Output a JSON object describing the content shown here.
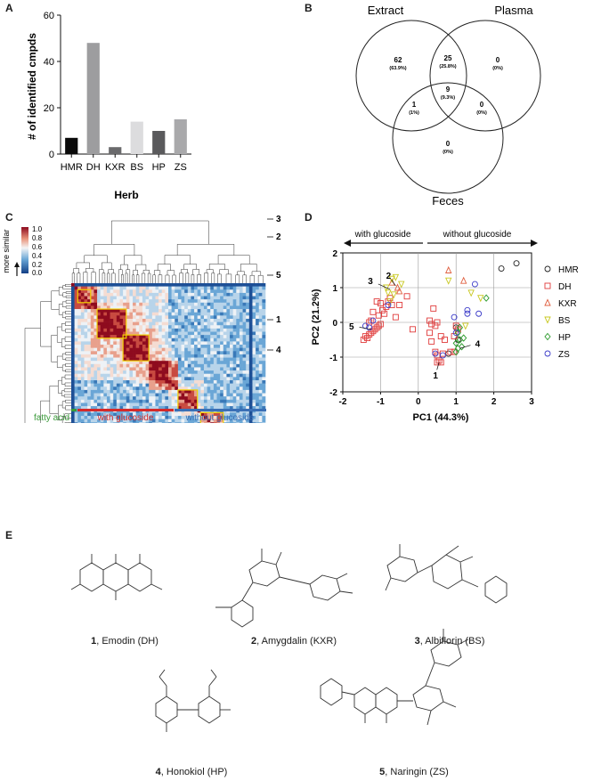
{
  "panel_labels": [
    "A",
    "B",
    "C",
    "D",
    "E"
  ],
  "panel_a": {
    "chart_data": {
      "type": "bar",
      "categories": [
        "HMR",
        "DH",
        "KXR",
        "BS",
        "HP",
        "ZS"
      ],
      "values": [
        7,
        48,
        3,
        14,
        10,
        15
      ],
      "colors": [
        "#0a0a0a",
        "#9d9d9f",
        "#6a6a6c",
        "#dcdcde",
        "#5a5a5c",
        "#a9a9ab"
      ],
      "xlabel": "Herb",
      "ylabel": "# of identified cmpds",
      "ylim": [
        0,
        60
      ],
      "yticks": [
        "0",
        "20",
        "40",
        "60"
      ]
    }
  },
  "panel_b": {
    "sets": [
      "Extract",
      "Plasma",
      "Feces"
    ],
    "regions": [
      {
        "id": "extract_only",
        "count": "62",
        "pct": "(63.9%)"
      },
      {
        "id": "extract_plasma",
        "count": "25",
        "pct": "(25.8%)"
      },
      {
        "id": "plasma_only",
        "count": "0",
        "pct": "(0%)"
      },
      {
        "id": "all_three",
        "count": "9",
        "pct": "(9.3%)"
      },
      {
        "id": "extract_feces",
        "count": "1",
        "pct": "(1%)"
      },
      {
        "id": "plasma_feces",
        "count": "0",
        "pct": "(0%)"
      },
      {
        "id": "feces_only",
        "count": "0",
        "pct": "(0%)"
      }
    ]
  },
  "panel_c": {
    "colorbar_ticks": [
      "1.0",
      "0.8",
      "0.6",
      "0.4",
      "0.2",
      "0.0"
    ],
    "colorbar_label": "more similar",
    "cluster_labels": [
      "3",
      "2",
      "5",
      "1",
      "4"
    ],
    "groups": [
      {
        "label": "fatty acid",
        "color": "#3a9a3a"
      },
      {
        "label": "with glucoside",
        "color": "#d42a2a"
      },
      {
        "label": "without glucoside",
        "color": "#3a6fb5"
      }
    ]
  },
  "panel_d": {
    "chart_data": {
      "type": "scatter",
      "xlabel": "PC1 (44.3%)",
      "ylabel": "PC2 (21.2%)",
      "xlim": [
        -2,
        3
      ],
      "ylim": [
        -2,
        2
      ],
      "xticks": [
        "-2",
        "-1",
        "0",
        "1",
        "2",
        "3"
      ],
      "yticks": [
        "-2",
        "-1",
        "0",
        "1",
        "2"
      ],
      "arrow_left_label": "with glucoside",
      "arrow_right_label": "without glucoside",
      "point_labels": [
        {
          "label": "1",
          "x": 0.55,
          "y": -1.15
        },
        {
          "label": "2",
          "x": -0.6,
          "y": 1.05
        },
        {
          "label": "3",
          "x": -0.75,
          "y": 0.95
        },
        {
          "label": "4",
          "x": 1.1,
          "y": -0.75
        },
        {
          "label": "5",
          "x": -1.25,
          "y": -0.2
        }
      ],
      "series": [
        {
          "name": "HMR",
          "marker": "circle",
          "color": "#222222",
          "points": [
            [
              2.2,
              1.55
            ],
            [
              2.6,
              1.7
            ],
            [
              1.0,
              -0.15
            ],
            [
              1.05,
              -0.5
            ],
            [
              0.8,
              -0.9
            ]
          ]
        },
        {
          "name": "DH",
          "marker": "square",
          "color": "#e03c3c",
          "points": [
            [
              -1.45,
              -0.5
            ],
            [
              -1.4,
              -0.4
            ],
            [
              -1.35,
              -0.45
            ],
            [
              -1.3,
              -0.35
            ],
            [
              -1.25,
              -0.3
            ],
            [
              -1.2,
              -0.25
            ],
            [
              -1.15,
              -0.2
            ],
            [
              -1.1,
              -0.15
            ],
            [
              -1.05,
              -0.1
            ],
            [
              -1.0,
              -0.05
            ],
            [
              -1.05,
              0.2
            ],
            [
              -1.2,
              0.3
            ],
            [
              -0.95,
              0.35
            ],
            [
              -0.9,
              0.25
            ],
            [
              -0.85,
              0.45
            ],
            [
              -1.0,
              0.55
            ],
            [
              -1.1,
              0.6
            ],
            [
              -0.8,
              0.6
            ],
            [
              -0.75,
              0.7
            ],
            [
              -0.7,
              0.5
            ],
            [
              -1.25,
              0.05
            ],
            [
              -1.3,
              0.0
            ],
            [
              -0.6,
              0.15
            ],
            [
              -0.5,
              0.5
            ],
            [
              -0.3,
              0.75
            ],
            [
              0.3,
              0.05
            ],
            [
              0.35,
              -0.05
            ],
            [
              0.45,
              -0.1
            ],
            [
              0.5,
              0.0
            ],
            [
              0.4,
              0.4
            ],
            [
              0.3,
              -0.3
            ],
            [
              0.35,
              -0.55
            ],
            [
              0.45,
              -0.85
            ],
            [
              0.5,
              -0.95
            ],
            [
              0.55,
              -1.1
            ],
            [
              0.6,
              -1.15
            ],
            [
              0.5,
              -1.15
            ],
            [
              0.65,
              -0.9
            ],
            [
              0.7,
              -0.5
            ],
            [
              0.85,
              -0.85
            ],
            [
              0.95,
              -0.85
            ],
            [
              1.0,
              -0.1
            ],
            [
              1.05,
              -0.2
            ],
            [
              0.95,
              -0.4
            ],
            [
              0.6,
              -0.4
            ],
            [
              -0.15,
              -0.2
            ]
          ]
        },
        {
          "name": "KXR",
          "marker": "triangle",
          "color": "#e06040",
          "points": [
            [
              -0.7,
              1.15
            ],
            [
              -0.55,
              1.0
            ],
            [
              -0.5,
              0.9
            ],
            [
              0.8,
              1.5
            ],
            [
              1.2,
              1.2
            ]
          ]
        },
        {
          "name": "BS",
          "marker": "invtriangle",
          "color": "#c8c820",
          "points": [
            [
              -0.8,
              0.85
            ],
            [
              -0.75,
              0.6
            ],
            [
              -0.7,
              1.25
            ],
            [
              -0.6,
              1.3
            ],
            [
              -0.65,
              0.8
            ],
            [
              -0.45,
              1.1
            ],
            [
              -0.85,
              1.0
            ],
            [
              0.8,
              1.2
            ],
            [
              1.25,
              -0.1
            ],
            [
              1.4,
              0.85
            ],
            [
              1.65,
              0.7
            ]
          ]
        },
        {
          "name": "HP",
          "marker": "diamond",
          "color": "#2a9a2a",
          "points": [
            [
              1.0,
              -0.6
            ],
            [
              1.05,
              -0.75
            ],
            [
              1.1,
              -0.5
            ],
            [
              1.15,
              -0.7
            ],
            [
              1.0,
              -0.85
            ],
            [
              1.05,
              -0.3
            ],
            [
              1.1,
              -0.15
            ],
            [
              1.8,
              0.7
            ],
            [
              1.2,
              -0.45
            ]
          ]
        },
        {
          "name": "ZS",
          "marker": "circle",
          "color": "#3a3ac8",
          "points": [
            [
              -1.4,
              -0.1
            ],
            [
              -1.3,
              -0.15
            ],
            [
              -1.2,
              0.05
            ],
            [
              -0.8,
              0.5
            ],
            [
              0.65,
              -0.95
            ],
            [
              1.3,
              0.35
            ],
            [
              1.3,
              0.25
            ],
            [
              1.5,
              1.1
            ],
            [
              1.6,
              0.25
            ],
            [
              1.0,
              -0.3
            ],
            [
              0.95,
              0.15
            ],
            [
              0.45,
              -0.9
            ]
          ]
        }
      ]
    }
  },
  "panel_e": {
    "compounds": [
      {
        "num": "1",
        "name": ", Emodin (DH)"
      },
      {
        "num": "2",
        "name": ", Amygdalin (KXR)"
      },
      {
        "num": "3",
        "name": ", Albiflorin (BS)"
      },
      {
        "num": "4",
        "name": ", Honokiol (HP)"
      },
      {
        "num": "5",
        "name": ", Naringin (ZS)"
      }
    ]
  }
}
